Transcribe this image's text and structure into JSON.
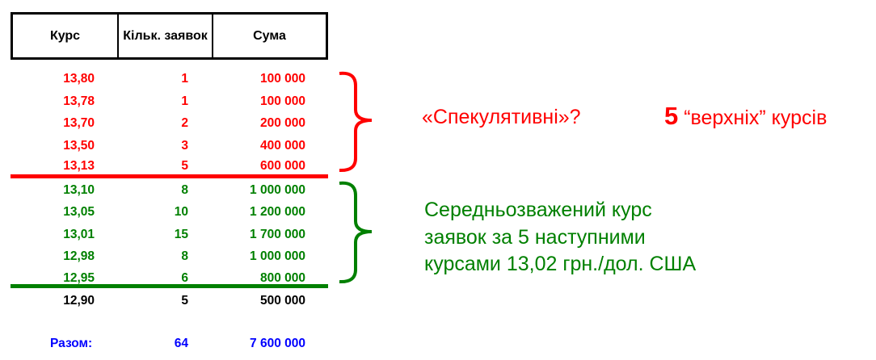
{
  "header": {
    "rate": "Курс",
    "count": "Кільк. заявок",
    "sum": "Сума"
  },
  "colors": {
    "speculative": "#ff0000",
    "next": "#008000",
    "other": "#000000",
    "total": "#0000ff"
  },
  "rows": [
    {
      "rate": "13,80",
      "count": "1",
      "sum": "100 000",
      "group": "speculative"
    },
    {
      "rate": "13,78",
      "count": "1",
      "sum": "100 000",
      "group": "speculative"
    },
    {
      "rate": "13,70",
      "count": "2",
      "sum": "200 000",
      "group": "speculative"
    },
    {
      "rate": "13,50",
      "count": "3",
      "sum": "400 000",
      "group": "speculative"
    },
    {
      "rate": "13,13",
      "count": "5",
      "sum": "600 000",
      "group": "speculative"
    },
    {
      "rate": "13,10",
      "count": "8",
      "sum": "1 000 000",
      "group": "next"
    },
    {
      "rate": "13,05",
      "count": "10",
      "sum": "1 200 000",
      "group": "next"
    },
    {
      "rate": "13,01",
      "count": "15",
      "sum": "1 700 000",
      "group": "next"
    },
    {
      "rate": "12,98",
      "count": "8",
      "sum": "1 000 000",
      "group": "next"
    },
    {
      "rate": "12,95",
      "count": "6",
      "sum": "800 000",
      "group": "next"
    },
    {
      "rate": "12,90",
      "count": "5",
      "sum": "500 000",
      "group": "other"
    }
  ],
  "total": {
    "label": "Разом:",
    "count": "64",
    "sum": "7 600 000"
  },
  "annotations": {
    "speculative": "«Спекулятивні»?",
    "top_number": "5",
    "top_text": "“верхніх” курсів",
    "weighted_lines": [
      "Середньозважений курс",
      "заявок за 5 наступними",
      "курсами  13,02 грн./дол. США"
    ]
  }
}
